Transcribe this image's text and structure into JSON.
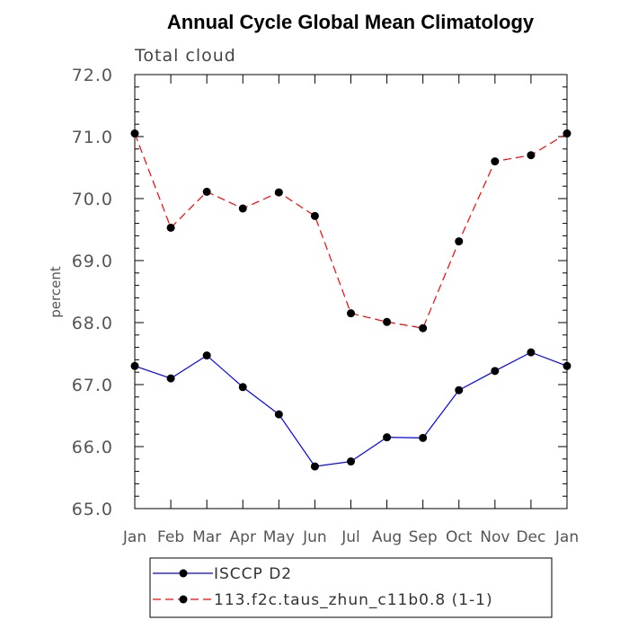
{
  "chart_data": {
    "type": "line",
    "title": "Annual Cycle Global Mean Climatology",
    "subtitle": "Total cloud",
    "xlabel": "",
    "ylabel": "percent",
    "categories": [
      "Jan",
      "Feb",
      "Mar",
      "Apr",
      "May",
      "Jun",
      "Jul",
      "Aug",
      "Sep",
      "Oct",
      "Nov",
      "Dec",
      "Jan"
    ],
    "ylim": [
      65.0,
      72.0
    ],
    "yticks": [
      "65.0",
      "66.0",
      "67.0",
      "68.0",
      "69.0",
      "70.0",
      "71.0",
      "72.0"
    ],
    "series": [
      {
        "name": "ISCCP D2",
        "color": "#0000ff",
        "dash": "solid",
        "values": [
          67.3,
          67.1,
          67.47,
          66.96,
          66.52,
          65.68,
          65.76,
          66.15,
          66.14,
          66.91,
          67.22,
          67.52,
          67.3
        ]
      },
      {
        "name": "113.f2c.taus_zhun_c11b0.8 (1-1)",
        "color": "#ff0000",
        "dash": "dashed",
        "values": [
          71.05,
          69.53,
          70.11,
          69.84,
          70.1,
          69.72,
          68.15,
          68.01,
          67.91,
          69.31,
          70.6,
          70.7,
          71.05
        ]
      }
    ],
    "grid": false,
    "legend_position": "bottom"
  }
}
